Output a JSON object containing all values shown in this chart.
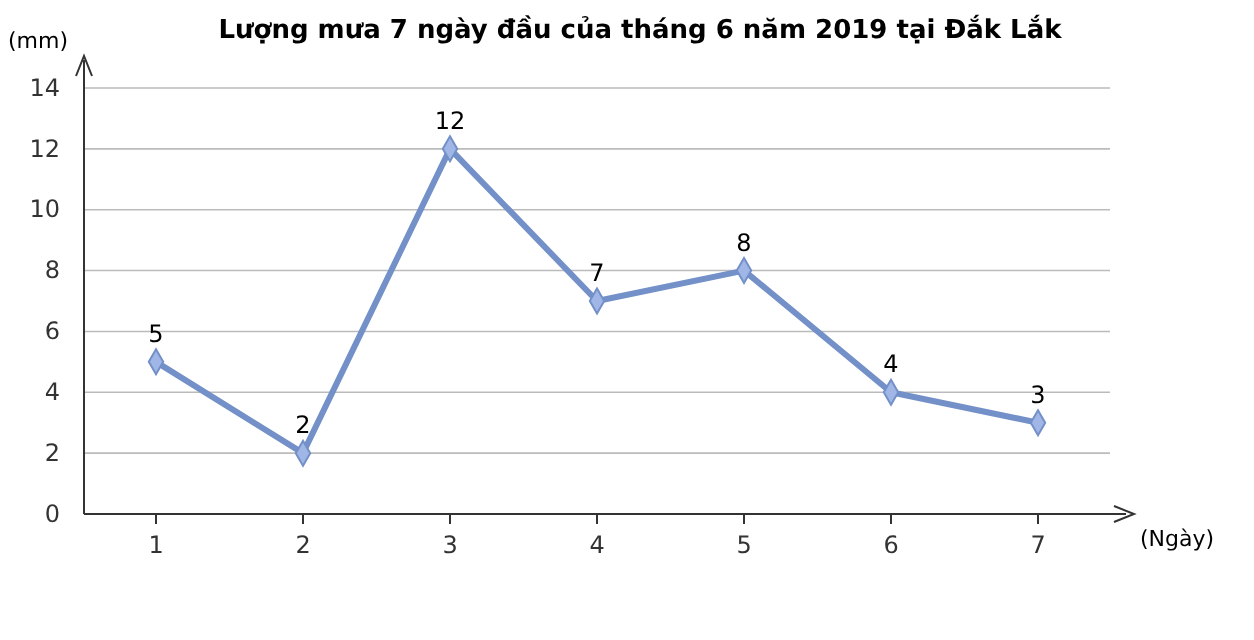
{
  "chart_data": {
    "type": "line",
    "title": "Lượng mưa 7 ngày đầu của tháng 6 năm 2019 tại Đắk Lắk",
    "xlabel": "(Ngày)",
    "ylabel": "(mm)",
    "categories": [
      "1",
      "2",
      "3",
      "4",
      "5",
      "6",
      "7"
    ],
    "series": [
      {
        "color": "#7390c8",
        "values": [
          5,
          2,
          12,
          7,
          8,
          4,
          3
        ]
      }
    ],
    "ylim": [
      0,
      14
    ],
    "yticks": [
      0,
      2,
      4,
      6,
      8,
      10,
      12,
      14
    ],
    "grid": "y",
    "marker": "diamond",
    "line_style": "solid",
    "data_labels": true
  }
}
